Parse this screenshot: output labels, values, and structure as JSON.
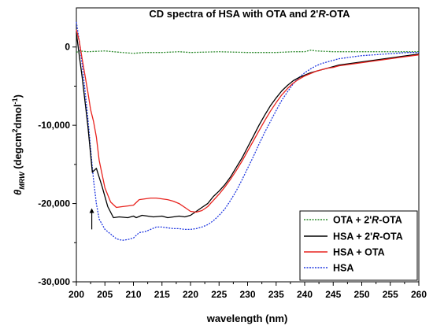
{
  "chart_data": {
    "type": "line",
    "title": "CD spectra of HSA with OTA and 2'R-OTA",
    "xlabel": "wavelength (nm)",
    "ylabel_parts": {
      "theta": "θ",
      "subscript": "MRW",
      "unit_a": " (degcm",
      "sup_2": "2",
      "unit_b": "dmol",
      "sup_neg1": "-1",
      "unit_c": ")"
    },
    "xlim": [
      200,
      260
    ],
    "ylim": [
      -30000,
      5000
    ],
    "x_ticks": [
      200,
      205,
      210,
      215,
      220,
      225,
      230,
      235,
      240,
      245,
      250,
      255,
      260
    ],
    "x_tick_labels": [
      "200",
      "205",
      "210",
      "215",
      "220",
      "225",
      "230",
      "235",
      "240",
      "245",
      "250",
      "255",
      "260"
    ],
    "y_ticks": [
      0,
      -10000,
      -20000,
      -30000
    ],
    "y_tick_labels": [
      "0",
      "-10,000",
      "-20,000",
      "-30,000"
    ],
    "grid": false,
    "legend_position": "bottom-right",
    "annotation_arrow": {
      "x": 202.7,
      "y_from": -23300,
      "y_to": -20600
    },
    "series": [
      {
        "name": "OTA + 2'R-OTA",
        "color": "#2e8b2e",
        "style": "dotted",
        "x": [
          200,
          200.5,
          202,
          205,
          208,
          210,
          212,
          215,
          218,
          220,
          225,
          230,
          235,
          238,
          240,
          241,
          242,
          245,
          250,
          255,
          260
        ],
        "y": [
          -700,
          -500,
          -600,
          -500,
          -700,
          -800,
          -700,
          -700,
          -600,
          -700,
          -600,
          -700,
          -700,
          -600,
          -600,
          -400,
          -500,
          -600,
          -600,
          -600,
          -600
        ]
      },
      {
        "name": "HSA + 2'R-OTA",
        "color": "#000000",
        "style": "solid",
        "x": [
          200,
          200.5,
          201,
          202,
          202.8,
          203.5,
          204.5,
          205.5,
          206.5,
          207.5,
          209,
          210,
          210.5,
          211.5,
          212.5,
          213.5,
          215,
          216,
          217,
          218,
          219,
          220,
          221,
          222,
          223,
          224,
          225,
          226,
          227,
          228,
          229,
          230,
          231,
          232,
          233,
          234,
          235,
          236,
          237,
          238,
          239,
          240,
          241,
          242,
          243,
          244,
          245,
          246,
          247,
          248,
          249,
          250,
          252,
          254,
          255,
          256,
          258,
          260
        ],
        "y": [
          1800,
          -1000,
          -3800,
          -10000,
          -16000,
          -15500,
          -17800,
          -20400,
          -21800,
          -21700,
          -21800,
          -21600,
          -21800,
          -21500,
          -21600,
          -21700,
          -21600,
          -21800,
          -21700,
          -21600,
          -21700,
          -21500,
          -21000,
          -20500,
          -20000,
          -19100,
          -18400,
          -17600,
          -16600,
          -15400,
          -14200,
          -12800,
          -11400,
          -10000,
          -8700,
          -7500,
          -6500,
          -5600,
          -4900,
          -4300,
          -3900,
          -3600,
          -3300,
          -3100,
          -2900,
          -2700,
          -2500,
          -2300,
          -2200,
          -2100,
          -2000,
          -1900,
          -1700,
          -1500,
          -1400,
          -1300,
          -1100,
          -900
        ]
      },
      {
        "name": "HSA + OTA",
        "color": "#e8231e",
        "style": "solid",
        "x": [
          200,
          200.5,
          201,
          201.5,
          202,
          202.5,
          203,
          203.5,
          204,
          205,
          206,
          207,
          208,
          209,
          210,
          211,
          212,
          213,
          214,
          215,
          216,
          217,
          218,
          219,
          220,
          221,
          222,
          223,
          224,
          225,
          226,
          227,
          228,
          229,
          230,
          231,
          232,
          233,
          234,
          235,
          236,
          237,
          238,
          239,
          240,
          241,
          242,
          243,
          244,
          245,
          246,
          247,
          248,
          249,
          250,
          252,
          254,
          256,
          258,
          260
        ],
        "y": [
          2200,
          800,
          -1500,
          -3600,
          -5700,
          -8000,
          -9500,
          -11500,
          -14500,
          -18000,
          -19800,
          -20500,
          -20400,
          -20300,
          -20200,
          -19500,
          -19400,
          -19300,
          -19300,
          -19400,
          -19500,
          -19700,
          -20000,
          -20500,
          -21000,
          -21100,
          -20900,
          -20400,
          -19600,
          -18800,
          -17900,
          -16900,
          -15800,
          -14600,
          -13300,
          -12000,
          -10700,
          -9400,
          -8200,
          -7100,
          -6100,
          -5300,
          -4600,
          -4100,
          -3700,
          -3400,
          -3100,
          -2900,
          -2700,
          -2600,
          -2400,
          -2300,
          -2200,
          -2100,
          -2000,
          -1800,
          -1600,
          -1400,
          -1200,
          -1000
        ]
      },
      {
        "name": "HSA",
        "color": "#2038e0",
        "style": "dotted",
        "x": [
          200,
          200.5,
          201,
          201.5,
          202,
          202.5,
          203,
          203.5,
          204,
          205,
          206,
          207,
          208,
          209,
          210,
          211,
          212,
          213,
          214,
          215,
          216,
          217,
          218,
          219,
          220,
          221,
          222,
          223,
          224,
          225,
          226,
          227,
          228,
          229,
          230,
          231,
          232,
          233,
          234,
          235,
          236,
          237,
          238,
          239,
          240,
          241,
          242,
          243,
          244,
          245,
          246,
          247,
          248,
          249,
          250,
          252,
          254,
          256,
          258,
          260
        ],
        "y": [
          3200,
          800,
          -2200,
          -5500,
          -9000,
          -13000,
          -17000,
          -20000,
          -22000,
          -23300,
          -23900,
          -24500,
          -24700,
          -24600,
          -24400,
          -23700,
          -23600,
          -23300,
          -23000,
          -23000,
          -23100,
          -23200,
          -23200,
          -23300,
          -23300,
          -23200,
          -23000,
          -22700,
          -22200,
          -21500,
          -20700,
          -19600,
          -18400,
          -17000,
          -15500,
          -14000,
          -12400,
          -10900,
          -9500,
          -8100,
          -6800,
          -5700,
          -4700,
          -3900,
          -3300,
          -2800,
          -2400,
          -2100,
          -1900,
          -1700,
          -1500,
          -1400,
          -1300,
          -1200,
          -1100,
          -1000,
          -900,
          -800,
          -700,
          -700
        ]
      }
    ]
  }
}
